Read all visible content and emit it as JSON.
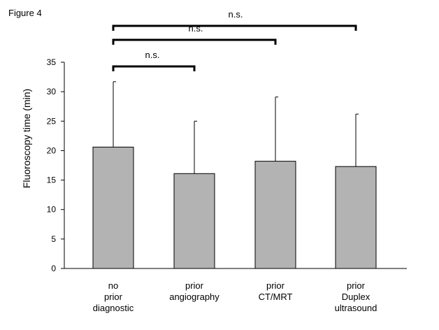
{
  "figure_label": "Figure 4",
  "chart_data": {
    "type": "bar",
    "title": "",
    "ylabel": "Fluoroscopy time (min)",
    "xlabel": "",
    "ylim": [
      0,
      35
    ],
    "yticks": [
      "0",
      "5",
      "10",
      "15",
      "20",
      "25",
      "30",
      "35"
    ],
    "categories": [
      "no\nprior\ndiagnostic",
      "prior\nangiography",
      "prior\nCT/MRT",
      "prior\nDuplex\nultrasound"
    ],
    "values": [
      20.6,
      16.1,
      18.2,
      17.3
    ],
    "error_upper": [
      31.7,
      25.0,
      29.1,
      26.2
    ],
    "bar_color": "#b3b3b3",
    "grid": false,
    "significance": [
      {
        "from": 0,
        "to": 1,
        "label": "n.s."
      },
      {
        "from": 0,
        "to": 2,
        "label": "n.s."
      },
      {
        "from": 0,
        "to": 3,
        "label": "n.s."
      }
    ]
  }
}
